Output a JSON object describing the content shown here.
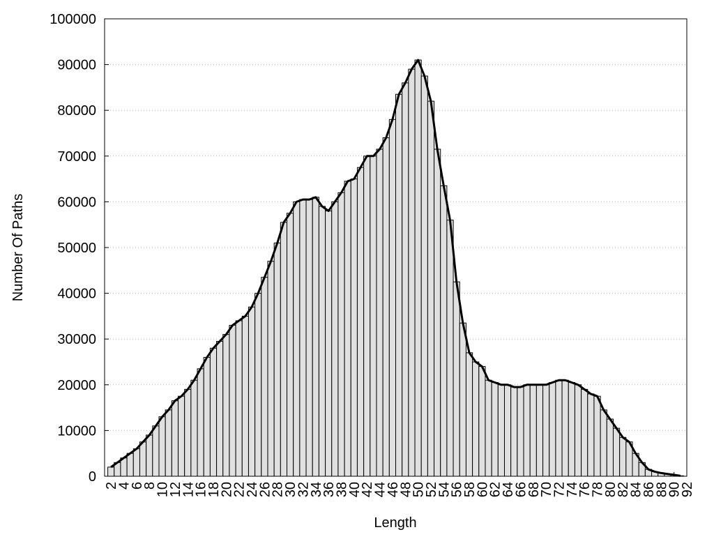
{
  "chart_data": {
    "type": "bar",
    "x_label": "Length",
    "y_label": "Number Of Paths",
    "x": [
      2,
      3,
      4,
      5,
      6,
      7,
      8,
      9,
      10,
      11,
      12,
      13,
      14,
      15,
      16,
      17,
      18,
      19,
      20,
      21,
      22,
      23,
      24,
      25,
      26,
      27,
      28,
      29,
      30,
      31,
      32,
      33,
      34,
      35,
      36,
      37,
      38,
      39,
      40,
      41,
      42,
      43,
      44,
      45,
      46,
      47,
      48,
      49,
      50,
      51,
      52,
      53,
      54,
      55,
      56,
      57,
      58,
      59,
      60,
      61,
      62,
      63,
      64,
      65,
      66,
      67,
      68,
      69,
      70,
      71,
      72,
      73,
      74,
      75,
      76,
      77,
      78,
      79,
      80,
      81,
      82,
      83,
      84,
      85,
      86,
      87,
      88,
      89,
      90,
      91
    ],
    "values": [
      2000,
      3000,
      4000,
      5000,
      6000,
      7500,
      9000,
      11000,
      13000,
      14500,
      16500,
      17500,
      19000,
      21000,
      23500,
      26000,
      28000,
      29500,
      31000,
      33000,
      34000,
      35000,
      37000,
      40000,
      43500,
      47000,
      51000,
      55500,
      57500,
      60000,
      60500,
      60500,
      61000,
      59000,
      58000,
      60000,
      62000,
      64500,
      65000,
      67500,
      70000,
      70000,
      71500,
      74000,
      78000,
      83500,
      86000,
      89000,
      91000,
      87500,
      82000,
      71500,
      63500,
      56000,
      42500,
      33500,
      27000,
      25000,
      24000,
      21000,
      20500,
      20000,
      20000,
      19500,
      19500,
      20000,
      20000,
      20000,
      20000,
      20500,
      21000,
      21000,
      20500,
      20000,
      19000,
      18000,
      17500,
      14500,
      12500,
      10500,
      8500,
      7500,
      5000,
      3000,
      1500,
      1000,
      700,
      500,
      300,
      100
    ],
    "color": "#e0e0e0",
    "line_color": "#000000",
    "xlim": [
      1,
      92
    ],
    "xticks": [
      2,
      4,
      6,
      8,
      10,
      12,
      14,
      16,
      18,
      20,
      22,
      24,
      26,
      28,
      30,
      32,
      34,
      36,
      38,
      40,
      42,
      44,
      46,
      48,
      50,
      52,
      54,
      56,
      58,
      60,
      62,
      64,
      66,
      68,
      70,
      72,
      74,
      76,
      78,
      80,
      82,
      84,
      86,
      88,
      90,
      92
    ],
    "ylim": [
      0,
      100000
    ],
    "yticks": [
      0,
      10000,
      20000,
      30000,
      40000,
      50000,
      60000,
      70000,
      80000,
      90000,
      100000
    ],
    "grid": true
  }
}
